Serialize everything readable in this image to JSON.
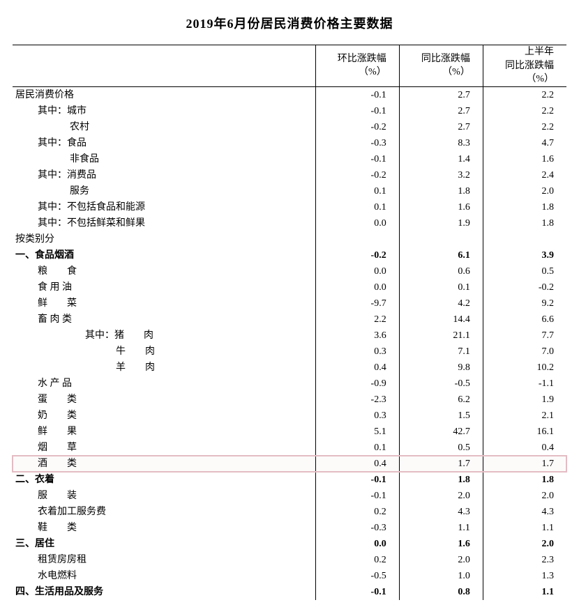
{
  "title": "2019年6月份居民消费价格主要数据",
  "columns": {
    "c1": "环比涨跌幅\n（%）",
    "c2": "同比涨跌幅\n（%）",
    "c3": "上半年\n同比涨跌幅（%）"
  },
  "rows": [
    {
      "label": "居民消费价格",
      "indent": 0,
      "v": [
        "-0.1",
        "2.7",
        "2.2"
      ]
    },
    {
      "label": "其中：城市",
      "indent": 1,
      "v": [
        "-0.1",
        "2.7",
        "2.2"
      ]
    },
    {
      "label": "农村",
      "indent": 2,
      "v": [
        "-0.2",
        "2.7",
        "2.2"
      ]
    },
    {
      "label": "其中：食品",
      "indent": 1,
      "v": [
        "-0.3",
        "8.3",
        "4.7"
      ]
    },
    {
      "label": "非食品",
      "indent": 2,
      "v": [
        "-0.1",
        "1.4",
        "1.6"
      ]
    },
    {
      "label": "其中：消费品",
      "indent": 1,
      "v": [
        "-0.2",
        "3.2",
        "2.4"
      ]
    },
    {
      "label": "服务",
      "indent": 2,
      "v": [
        "0.1",
        "1.8",
        "2.0"
      ]
    },
    {
      "label": "其中：不包括食品和能源",
      "indent": 1,
      "v": [
        "0.1",
        "1.6",
        "1.8"
      ]
    },
    {
      "label": "其中：不包括鲜菜和鲜果",
      "indent": 1,
      "v": [
        "0.0",
        "1.9",
        "1.8"
      ]
    },
    {
      "label": "按类别分",
      "indent": 0,
      "v": [
        "",
        "",
        ""
      ]
    },
    {
      "label": "一、食品烟酒",
      "indent": 0,
      "v": [
        "-0.2",
        "6.1",
        "3.9"
      ],
      "bold": true
    },
    {
      "label": "粮　　食",
      "indent": 1,
      "v": [
        "0.0",
        "0.6",
        "0.5"
      ]
    },
    {
      "label": "食 用 油",
      "indent": 1,
      "v": [
        "0.0",
        "0.1",
        "-0.2"
      ]
    },
    {
      "label": "鲜　　菜",
      "indent": 1,
      "v": [
        "-9.7",
        "4.2",
        "9.2"
      ]
    },
    {
      "label": "畜 肉 类",
      "indent": 1,
      "v": [
        "2.2",
        "14.4",
        "6.6"
      ]
    },
    {
      "label": "其中：猪　　肉",
      "indent": 3,
      "v": [
        "3.6",
        "21.1",
        "7.7"
      ]
    },
    {
      "label": "牛　　肉",
      "indent": 4,
      "v": [
        "0.3",
        "7.1",
        "7.0"
      ]
    },
    {
      "label": "羊　　肉",
      "indent": 4,
      "v": [
        "0.4",
        "9.8",
        "10.2"
      ]
    },
    {
      "label": "水 产 品",
      "indent": 1,
      "v": [
        "-0.9",
        "-0.5",
        "-1.1"
      ]
    },
    {
      "label": "蛋　　类",
      "indent": 1,
      "v": [
        "-2.3",
        "6.2",
        "1.9"
      ]
    },
    {
      "label": "奶　　类",
      "indent": 1,
      "v": [
        "0.3",
        "1.5",
        "2.1"
      ]
    },
    {
      "label": "鲜　　果",
      "indent": 1,
      "v": [
        "5.1",
        "42.7",
        "16.1"
      ]
    },
    {
      "label": "烟　　草",
      "indent": 1,
      "v": [
        "0.1",
        "0.5",
        "0.4"
      ]
    },
    {
      "label": "酒　　类",
      "indent": 1,
      "v": [
        "0.4",
        "1.7",
        "1.7"
      ],
      "highlight": true
    },
    {
      "label": "二、衣着",
      "indent": 0,
      "v": [
        "-0.1",
        "1.8",
        "1.8"
      ],
      "bold": true
    },
    {
      "label": "服　　装",
      "indent": 1,
      "v": [
        "-0.1",
        "2.0",
        "2.0"
      ]
    },
    {
      "label": "衣着加工服务费",
      "indent": 1,
      "v": [
        "0.2",
        "4.3",
        "4.3"
      ]
    },
    {
      "label": "鞋　　类",
      "indent": 1,
      "v": [
        "-0.3",
        "1.1",
        "1.1"
      ]
    },
    {
      "label": "三、居住",
      "indent": 0,
      "v": [
        "0.0",
        "1.6",
        "2.0"
      ],
      "bold": true
    },
    {
      "label": "租赁房房租",
      "indent": 1,
      "v": [
        "0.2",
        "2.0",
        "2.3"
      ]
    },
    {
      "label": "水电燃料",
      "indent": 1,
      "v": [
        "-0.5",
        "1.0",
        "1.3"
      ]
    },
    {
      "label": "四、生活用品及服务",
      "indent": 0,
      "v": [
        "-0.1",
        "0.8",
        "1.1"
      ],
      "bold": true
    }
  ],
  "style": {
    "highlight_border": "#e4bcc3",
    "text_color": "#000000",
    "background": "#ffffff",
    "border_color": "#000000",
    "title_fontsize": 18,
    "body_fontsize": 14
  }
}
